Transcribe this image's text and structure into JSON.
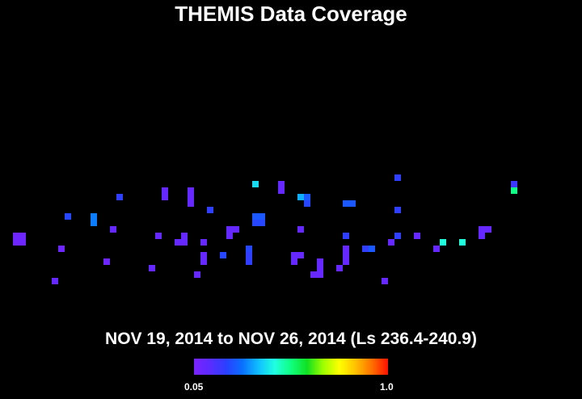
{
  "title": "THEMIS Data Coverage",
  "subtitle": "NOV 19, 2014 to NOV 26, 2014 (Ls 236.4-240.9)",
  "colorbar": {
    "min_label": "0.05",
    "max_label": "1.0",
    "colors": [
      "#7a22ff",
      "#5a2cff",
      "#2a40ff",
      "#0a70ff",
      "#10c0ff",
      "#20ffe0",
      "#10ff80",
      "#10e020",
      "#a0ff00",
      "#ffff00",
      "#ffc000",
      "#ff7000",
      "#ff1000"
    ]
  },
  "chart_data": {
    "type": "heatmap",
    "title": "THEMIS Data Coverage",
    "subtitle": "NOV 19, 2014 to NOV 26, 2014 (Ls 236.4-240.9)",
    "value_range": [
      0.05,
      1.0
    ],
    "grid_size": [
      90,
      61
    ],
    "cells": [
      {
        "col": 2,
        "row": 36,
        "v": 0.08
      },
      {
        "col": 3,
        "row": 36,
        "v": 0.08
      },
      {
        "col": 2,
        "row": 37,
        "v": 0.08
      },
      {
        "col": 3,
        "row": 37,
        "v": 0.08
      },
      {
        "col": 8,
        "row": 43,
        "v": 0.1
      },
      {
        "col": 9,
        "row": 38,
        "v": 0.08
      },
      {
        "col": 10,
        "row": 33,
        "v": 0.22
      },
      {
        "col": 14,
        "row": 33,
        "v": 0.3
      },
      {
        "col": 14,
        "row": 34,
        "v": 0.3
      },
      {
        "col": 16,
        "row": 40,
        "v": 0.08
      },
      {
        "col": 17,
        "row": 35,
        "v": 0.1
      },
      {
        "col": 18,
        "row": 30,
        "v": 0.2
      },
      {
        "col": 23,
        "row": 41,
        "v": 0.1
      },
      {
        "col": 24,
        "row": 36,
        "v": 0.1
      },
      {
        "col": 25,
        "row": 29,
        "v": 0.1
      },
      {
        "col": 25,
        "row": 30,
        "v": 0.1
      },
      {
        "col": 27,
        "row": 37,
        "v": 0.1
      },
      {
        "col": 28,
        "row": 36,
        "v": 0.1
      },
      {
        "col": 28,
        "row": 37,
        "v": 0.1
      },
      {
        "col": 29,
        "row": 29,
        "v": 0.1
      },
      {
        "col": 29,
        "row": 30,
        "v": 0.1
      },
      {
        "col": 29,
        "row": 31,
        "v": 0.1
      },
      {
        "col": 30,
        "row": 42,
        "v": 0.1
      },
      {
        "col": 31,
        "row": 37,
        "v": 0.1
      },
      {
        "col": 31,
        "row": 39,
        "v": 0.1
      },
      {
        "col": 31,
        "row": 40,
        "v": 0.1
      },
      {
        "col": 32,
        "row": 32,
        "v": 0.2
      },
      {
        "col": 34,
        "row": 39,
        "v": 0.22
      },
      {
        "col": 35,
        "row": 35,
        "v": 0.1
      },
      {
        "col": 36,
        "row": 35,
        "v": 0.1
      },
      {
        "col": 35,
        "row": 36,
        "v": 0.1
      },
      {
        "col": 38,
        "row": 38,
        "v": 0.22
      },
      {
        "col": 38,
        "row": 39,
        "v": 0.2
      },
      {
        "col": 38,
        "row": 40,
        "v": 0.2
      },
      {
        "col": 39,
        "row": 28,
        "v": 0.4
      },
      {
        "col": 39,
        "row": 33,
        "v": 0.25
      },
      {
        "col": 40,
        "row": 33,
        "v": 0.25
      },
      {
        "col": 39,
        "row": 34,
        "v": 0.22
      },
      {
        "col": 40,
        "row": 34,
        "v": 0.22
      },
      {
        "col": 43,
        "row": 28,
        "v": 0.1
      },
      {
        "col": 43,
        "row": 29,
        "v": 0.1
      },
      {
        "col": 45,
        "row": 39,
        "v": 0.1
      },
      {
        "col": 46,
        "row": 39,
        "v": 0.1
      },
      {
        "col": 45,
        "row": 40,
        "v": 0.1
      },
      {
        "col": 46,
        "row": 30,
        "v": 0.35
      },
      {
        "col": 47,
        "row": 30,
        "v": 0.25
      },
      {
        "col": 47,
        "row": 31,
        "v": 0.22
      },
      {
        "col": 46,
        "row": 35,
        "v": 0.1
      },
      {
        "col": 49,
        "row": 40,
        "v": 0.1
      },
      {
        "col": 49,
        "row": 41,
        "v": 0.1
      },
      {
        "col": 48,
        "row": 42,
        "v": 0.1
      },
      {
        "col": 49,
        "row": 42,
        "v": 0.1
      },
      {
        "col": 52,
        "row": 41,
        "v": 0.1
      },
      {
        "col": 53,
        "row": 31,
        "v": 0.25
      },
      {
        "col": 54,
        "row": 31,
        "v": 0.25
      },
      {
        "col": 53,
        "row": 36,
        "v": 0.2
      },
      {
        "col": 53,
        "row": 38,
        "v": 0.1
      },
      {
        "col": 53,
        "row": 39,
        "v": 0.1
      },
      {
        "col": 53,
        "row": 40,
        "v": 0.1
      },
      {
        "col": 56,
        "row": 38,
        "v": 0.2
      },
      {
        "col": 57,
        "row": 38,
        "v": 0.25
      },
      {
        "col": 59,
        "row": 43,
        "v": 0.1
      },
      {
        "col": 60,
        "row": 37,
        "v": 0.1
      },
      {
        "col": 61,
        "row": 27,
        "v": 0.2
      },
      {
        "col": 61,
        "row": 32,
        "v": 0.2
      },
      {
        "col": 61,
        "row": 36,
        "v": 0.2
      },
      {
        "col": 64,
        "row": 36,
        "v": 0.1
      },
      {
        "col": 67,
        "row": 38,
        "v": 0.1
      },
      {
        "col": 68,
        "row": 37,
        "v": 0.45
      },
      {
        "col": 71,
        "row": 37,
        "v": 0.45
      },
      {
        "col": 74,
        "row": 35,
        "v": 0.1
      },
      {
        "col": 75,
        "row": 35,
        "v": 0.1
      },
      {
        "col": 74,
        "row": 36,
        "v": 0.1
      },
      {
        "col": 79,
        "row": 28,
        "v": 0.18
      },
      {
        "col": 79,
        "row": 29,
        "v": 0.52
      }
    ]
  }
}
